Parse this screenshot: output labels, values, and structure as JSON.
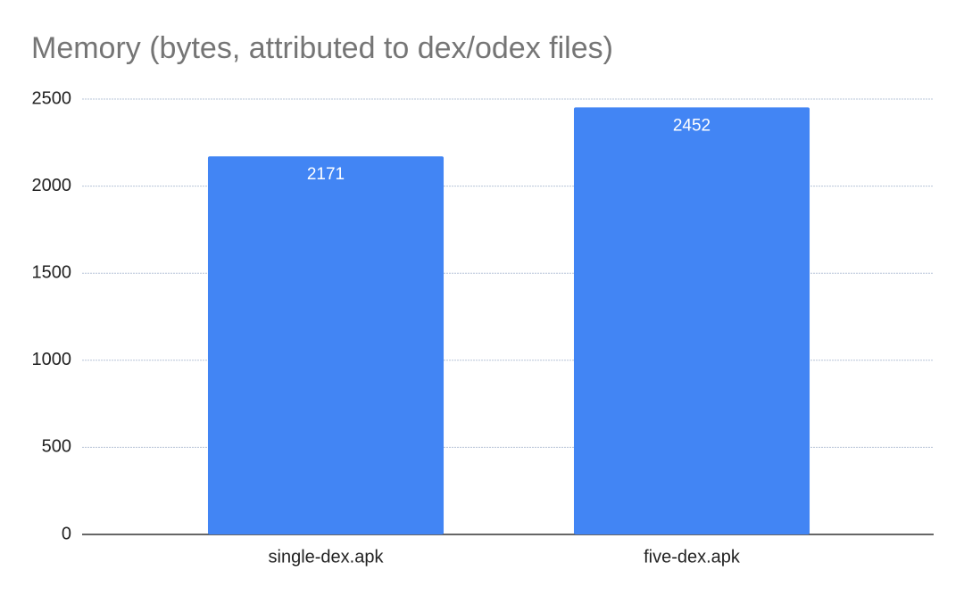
{
  "chart_data": {
    "type": "bar",
    "title": "Memory (bytes, attributed to dex/odex files)",
    "categories": [
      "single-dex.apk",
      "five-dex.apk"
    ],
    "values": [
      2171,
      2452
    ],
    "color": "#4285f4",
    "ylim": [
      0,
      2500
    ],
    "yticks": [
      0,
      500,
      1000,
      1500,
      2000,
      2500
    ],
    "grid": true,
    "data_labels": true
  }
}
